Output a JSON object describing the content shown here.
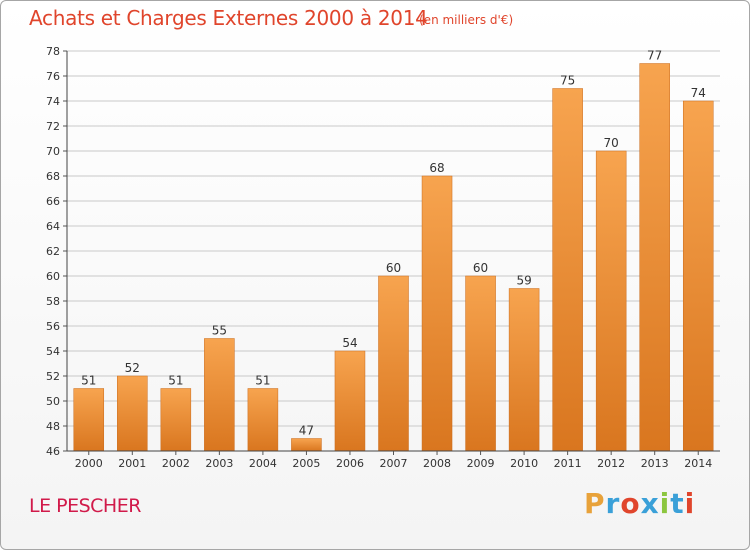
{
  "header": {
    "title": "Achats et Charges Externes 2000 à 2014",
    "unit_note": "(en milliers d'€)"
  },
  "footer": {
    "commune": "LE PESCHER",
    "logo_text": "Proxiti",
    "logo_colors": [
      "#e8a23a",
      "#3aa0d8",
      "#e0452c",
      "#3aa0d8",
      "#8cc63f",
      "#3aa0d8",
      "#e0452c"
    ]
  },
  "colors": {
    "bar_light": "#f7a44f",
    "bar_dark": "#d9761f",
    "grid": "#c9c9c9",
    "text": "#333333",
    "title": "#e0452c"
  },
  "chart_data": {
    "type": "bar",
    "title": "Achats et Charges Externes 2000 à 2014",
    "subtitle": "(en milliers d'€)",
    "categories": [
      "2000",
      "2001",
      "2002",
      "2003",
      "2004",
      "2005",
      "2006",
      "2007",
      "2008",
      "2009",
      "2010",
      "2011",
      "2012",
      "2013",
      "2014"
    ],
    "values": [
      51,
      52,
      51,
      55,
      51,
      47,
      54,
      60,
      68,
      60,
      59,
      75,
      70,
      77,
      74
    ],
    "ylim": [
      46,
      78
    ],
    "yticks": [
      46,
      48,
      50,
      52,
      54,
      56,
      58,
      60,
      62,
      64,
      66,
      68,
      70,
      72,
      74,
      76,
      78
    ],
    "xlabel": "",
    "ylabel": "",
    "grid": "horizontal"
  }
}
